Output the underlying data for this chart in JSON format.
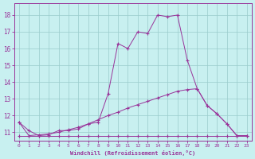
{
  "xlabel": "Windchill (Refroidissement éolien,°C)",
  "background_color": "#c8f0f0",
  "line_color": "#993399",
  "grid_color": "#99cccc",
  "xlim": [
    -0.5,
    23.5
  ],
  "ylim": [
    10.5,
    18.7
  ],
  "yticks": [
    11,
    12,
    13,
    14,
    15,
    16,
    17,
    18
  ],
  "xticks": [
    0,
    1,
    2,
    3,
    4,
    5,
    6,
    7,
    8,
    9,
    10,
    11,
    12,
    13,
    14,
    15,
    16,
    17,
    18,
    19,
    20,
    21,
    22,
    23
  ],
  "line1_x": [
    0,
    1,
    2,
    3,
    4,
    5,
    6,
    7,
    8,
    9,
    10,
    11,
    12,
    13,
    14,
    15,
    16,
    17,
    18,
    19,
    20,
    21,
    22,
    23
  ],
  "line1_y": [
    11.6,
    11.1,
    10.8,
    10.85,
    11.1,
    11.1,
    11.2,
    11.5,
    11.6,
    13.3,
    16.3,
    16.0,
    17.0,
    16.9,
    18.0,
    17.9,
    18.0,
    15.3,
    13.6,
    12.6,
    12.1,
    11.5,
    10.8,
    10.8
  ],
  "line2_x": [
    0,
    1,
    2,
    3,
    4,
    5,
    6,
    7,
    8,
    9,
    10,
    11,
    12,
    13,
    14,
    15,
    16,
    17,
    18,
    19,
    20,
    21,
    22,
    23
  ],
  "line2_y": [
    11.6,
    10.8,
    10.85,
    10.9,
    11.0,
    11.15,
    11.3,
    11.5,
    11.75,
    12.0,
    12.2,
    12.45,
    12.65,
    12.85,
    13.05,
    13.25,
    13.45,
    13.55,
    13.6,
    12.6,
    12.1,
    11.5,
    10.8,
    10.8
  ],
  "line3_x": [
    0,
    1,
    2,
    3,
    4,
    5,
    6,
    7,
    8,
    9,
    10,
    11,
    12,
    13,
    14,
    15,
    16,
    17,
    18,
    19,
    20,
    21,
    22,
    23
  ],
  "line3_y": [
    10.8,
    10.8,
    10.8,
    10.8,
    10.8,
    10.8,
    10.8,
    10.8,
    10.8,
    10.8,
    10.8,
    10.8,
    10.8,
    10.8,
    10.8,
    10.8,
    10.8,
    10.8,
    10.8,
    10.8,
    10.8,
    10.8,
    10.8,
    10.8
  ]
}
